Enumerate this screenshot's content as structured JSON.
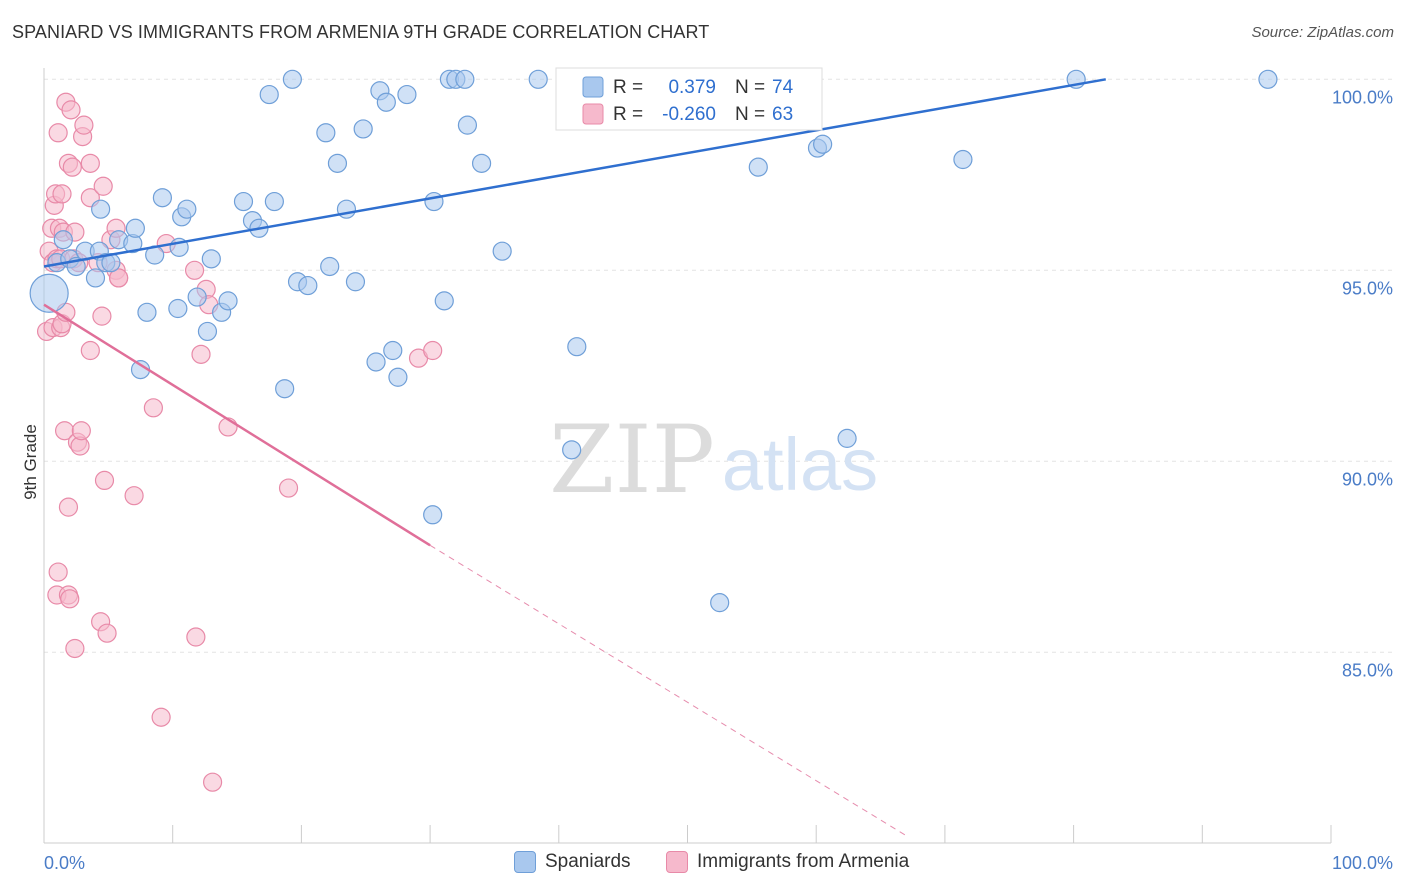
{
  "title": "SPANIARD VS IMMIGRANTS FROM ARMENIA 9TH GRADE CORRELATION CHART",
  "source": "Source: ZipAtlas.com",
  "watermark": {
    "zip": "ZIP",
    "atlas": "atlas"
  },
  "colors": {
    "blue_fill": "#a9c8ee",
    "blue_stroke": "#6f9fd8",
    "blue_line": "#2f6fcf",
    "pink_fill": "#f6b9cc",
    "pink_stroke": "#e88aa8",
    "pink_line": "#e06f99",
    "tick_text": "#4a7cc7",
    "grid": "#e3e3e3"
  },
  "legend": {
    "rows": [
      {
        "r_label": "R =",
        "r_value": "0.379",
        "n_label": "N =",
        "n_value": "74"
      },
      {
        "r_label": "R =",
        "r_value": "-0.260",
        "n_label": "N =",
        "n_value": "63"
      }
    ]
  },
  "bottom_legend": [
    "Spaniards",
    "Immigrants from Armenia"
  ],
  "chart_data": {
    "type": "scatter",
    "title": "SPANIARD VS IMMIGRANTS FROM ARMENIA 9TH GRADE CORRELATION CHART",
    "xlabel": "",
    "ylabel": "9th Grade",
    "xlim": [
      0,
      100
    ],
    "ylim": [
      80.2,
      100.6
    ],
    "x_tick_labels": [
      "0.0%",
      "100.0%"
    ],
    "y_ticks": [
      85,
      90,
      95,
      100
    ],
    "y_tick_labels": [
      "85.0%",
      "90.0%",
      "95.0%",
      "100.0%"
    ],
    "grid": true,
    "legend_position": "top-center",
    "series": [
      {
        "name": "Spaniards",
        "R": 0.379,
        "N": 74,
        "trend": {
          "x": [
            0,
            82.5
          ],
          "y": [
            95.1,
            100.0
          ]
        },
        "points": [
          [
            0.4,
            94.4,
            3
          ],
          [
            1.0,
            95.2,
            1
          ],
          [
            1.5,
            95.8,
            1
          ],
          [
            2.0,
            95.3,
            1
          ],
          [
            2.5,
            95.1,
            1
          ],
          [
            3.2,
            95.5,
            1
          ],
          [
            4.0,
            94.8,
            1
          ],
          [
            4.3,
            95.5,
            1
          ],
          [
            4.4,
            96.6,
            1
          ],
          [
            4.8,
            95.2,
            1
          ],
          [
            5.2,
            95.2,
            1
          ],
          [
            5.8,
            95.8,
            1
          ],
          [
            6.9,
            95.7,
            1
          ],
          [
            7.1,
            96.1,
            1
          ],
          [
            7.5,
            92.4,
            1
          ],
          [
            8.0,
            93.9,
            1
          ],
          [
            8.6,
            95.4,
            1
          ],
          [
            9.2,
            96.9,
            1
          ],
          [
            10.4,
            94.0,
            1
          ],
          [
            10.5,
            95.6,
            1
          ],
          [
            10.7,
            96.4,
            1
          ],
          [
            11.1,
            96.6,
            1
          ],
          [
            11.9,
            94.3,
            1
          ],
          [
            12.7,
            93.4,
            1
          ],
          [
            13.0,
            95.3,
            1
          ],
          [
            13.8,
            93.9,
            1
          ],
          [
            14.3,
            94.2,
            1
          ],
          [
            15.5,
            96.8,
            1
          ],
          [
            16.2,
            96.3,
            1
          ],
          [
            16.7,
            96.1,
            1
          ],
          [
            17.5,
            99.6,
            1
          ],
          [
            17.9,
            96.8,
            1
          ],
          [
            18.7,
            91.9,
            1
          ],
          [
            19.3,
            100.0,
            1
          ],
          [
            19.7,
            94.7,
            1
          ],
          [
            20.5,
            94.6,
            1
          ],
          [
            21.9,
            98.6,
            1
          ],
          [
            22.2,
            95.1,
            1
          ],
          [
            22.8,
            97.8,
            1
          ],
          [
            23.5,
            96.6,
            1
          ],
          [
            24.2,
            94.7,
            1
          ],
          [
            24.8,
            98.7,
            1
          ],
          [
            25.8,
            92.6,
            1
          ],
          [
            26.1,
            99.7,
            1
          ],
          [
            26.6,
            99.4,
            1
          ],
          [
            27.1,
            92.9,
            1
          ],
          [
            27.5,
            92.2,
            1
          ],
          [
            28.2,
            99.6,
            1
          ],
          [
            30.2,
            88.6,
            1
          ],
          [
            30.3,
            96.8,
            1
          ],
          [
            31.1,
            94.2,
            1
          ],
          [
            31.5,
            100.0,
            1
          ],
          [
            32.0,
            100.0,
            1
          ],
          [
            32.7,
            100.0,
            1
          ],
          [
            32.9,
            98.8,
            1
          ],
          [
            34.0,
            97.8,
            1
          ],
          [
            35.6,
            95.5,
            1
          ],
          [
            38.4,
            100.0,
            1
          ],
          [
            41.0,
            90.3,
            1
          ],
          [
            41.4,
            93.0,
            1
          ],
          [
            42.0,
            100.0,
            1
          ],
          [
            44.1,
            100.0,
            1
          ],
          [
            44.3,
            100.0,
            1
          ],
          [
            46.4,
            100.0,
            1
          ],
          [
            48.2,
            100.0,
            1
          ],
          [
            52.5,
            86.3,
            1
          ],
          [
            55.5,
            97.7,
            1
          ],
          [
            59.3,
            100.0,
            1
          ],
          [
            60.1,
            98.2,
            1
          ],
          [
            60.5,
            98.3,
            1
          ],
          [
            62.4,
            90.6,
            1
          ],
          [
            71.4,
            97.9,
            1
          ],
          [
            80.2,
            100.0,
            1
          ],
          [
            95.1,
            100.0,
            1
          ]
        ]
      },
      {
        "name": "Immigrants from Armenia",
        "R": -0.26,
        "N": 63,
        "trend": {
          "x": [
            0,
            30
          ],
          "y": [
            94.1,
            87.8
          ]
        },
        "trend_dashed": {
          "x": [
            30,
            67
          ],
          "y": [
            87.8,
            80.2
          ]
        },
        "points": [
          [
            0.2,
            93.4,
            1
          ],
          [
            0.4,
            95.5,
            1
          ],
          [
            0.6,
            96.1,
            1
          ],
          [
            0.7,
            93.5,
            1
          ],
          [
            0.7,
            95.2,
            1
          ],
          [
            0.8,
            96.7,
            1
          ],
          [
            0.9,
            97.0,
            1
          ],
          [
            1.0,
            95.3,
            1
          ],
          [
            1.0,
            86.5,
            1
          ],
          [
            1.1,
            98.6,
            1
          ],
          [
            1.1,
            87.1,
            1
          ],
          [
            1.2,
            96.1,
            1
          ],
          [
            1.3,
            93.5,
            1
          ],
          [
            1.3,
            95.3,
            1
          ],
          [
            1.4,
            93.6,
            1
          ],
          [
            1.4,
            97.0,
            1
          ],
          [
            1.5,
            96.0,
            1
          ],
          [
            1.6,
            90.8,
            1
          ],
          [
            1.7,
            93.9,
            1
          ],
          [
            1.7,
            99.4,
            1
          ],
          [
            1.9,
            88.8,
            1
          ],
          [
            1.9,
            97.8,
            1
          ],
          [
            1.9,
            86.5,
            1
          ],
          [
            2.0,
            86.4,
            1
          ],
          [
            2.1,
            99.2,
            1
          ],
          [
            2.2,
            97.7,
            1
          ],
          [
            2.3,
            95.3,
            1
          ],
          [
            2.4,
            85.1,
            1
          ],
          [
            2.4,
            96.0,
            1
          ],
          [
            2.6,
            90.5,
            1
          ],
          [
            2.7,
            95.2,
            1
          ],
          [
            2.8,
            90.4,
            1
          ],
          [
            2.9,
            90.8,
            1
          ],
          [
            3.0,
            98.5,
            1
          ],
          [
            3.1,
            98.8,
            1
          ],
          [
            3.6,
            92.9,
            1
          ],
          [
            3.6,
            97.8,
            1
          ],
          [
            3.6,
            96.9,
            1
          ],
          [
            4.2,
            95.2,
            1
          ],
          [
            4.4,
            85.8,
            1
          ],
          [
            4.5,
            93.8,
            1
          ],
          [
            4.6,
            97.2,
            1
          ],
          [
            4.7,
            89.5,
            1
          ],
          [
            4.9,
            85.5,
            1
          ],
          [
            5.2,
            95.8,
            1
          ],
          [
            5.6,
            96.1,
            1
          ],
          [
            5.6,
            95.0,
            1
          ],
          [
            5.8,
            94.8,
            1
          ],
          [
            5.8,
            94.8,
            1
          ],
          [
            7.0,
            89.1,
            1
          ],
          [
            8.5,
            91.4,
            1
          ],
          [
            9.1,
            83.3,
            1
          ],
          [
            9.5,
            95.7,
            1
          ],
          [
            11.7,
            95.0,
            1
          ],
          [
            11.8,
            85.4,
            1
          ],
          [
            12.2,
            92.8,
            1
          ],
          [
            12.6,
            94.5,
            1
          ],
          [
            12.8,
            94.1,
            1
          ],
          [
            13.1,
            81.6,
            1
          ],
          [
            14.3,
            90.9,
            1
          ],
          [
            19.0,
            89.3,
            1
          ],
          [
            29.1,
            92.7,
            1
          ],
          [
            30.2,
            92.9,
            1
          ]
        ]
      }
    ]
  }
}
